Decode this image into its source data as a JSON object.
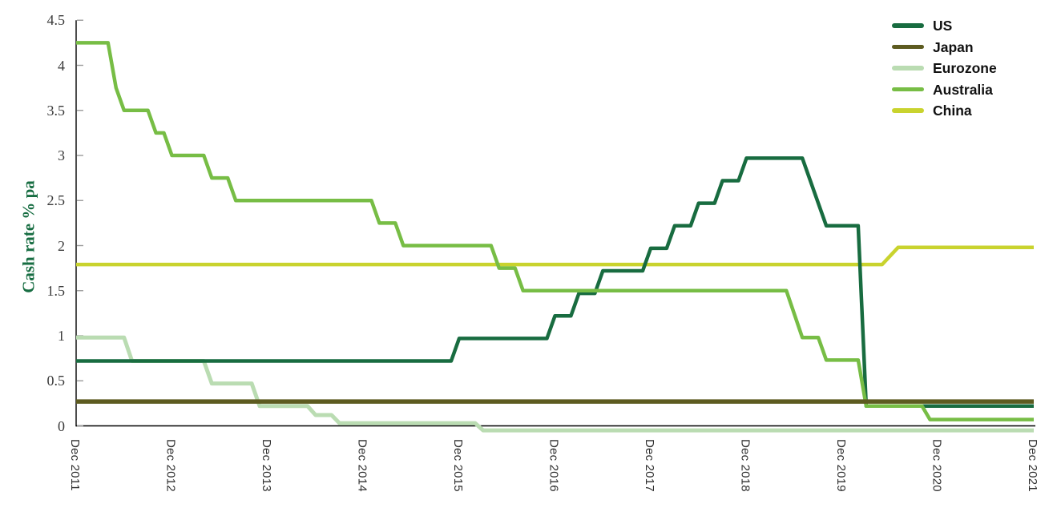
{
  "chart_data": {
    "type": "line",
    "title": "",
    "ylabel": "Cash rate % pa",
    "xlabel": "",
    "grid": false,
    "legend_position": "top-right",
    "x_unit": "months since Dec 2011",
    "xlim_months": [
      0,
      120
    ],
    "ylim": [
      0,
      4.5
    ],
    "y_ticks": [
      0,
      0.5,
      1,
      1.5,
      2,
      2.5,
      3,
      3.5,
      4,
      4.5
    ],
    "x_tick_months": [
      0,
      12,
      24,
      36,
      48,
      60,
      72,
      84,
      96,
      108,
      120
    ],
    "x_tick_labels": [
      "Dec 2011",
      "Dec 2012",
      "Dec 2013",
      "Dec 2014",
      "Dec 2015",
      "Dec 2016",
      "Dec 2017",
      "Dec 2018",
      "Dec 2019",
      "Dec 2020",
      "Dec 2021"
    ],
    "axis_color": "#000000",
    "tick_color": "#9B9B9B",
    "ylabel_color": "#176D42",
    "tick_label_color": "#3B3B3B",
    "draw_order": [
      "Eurozone",
      "China",
      "US",
      "Australia",
      "Japan"
    ],
    "series": [
      {
        "name": "US",
        "color": "#186C40",
        "width": 4.5,
        "points": [
          [
            0,
            0.72
          ],
          [
            47,
            0.72
          ],
          [
            48,
            0.97
          ],
          [
            59,
            0.97
          ],
          [
            60,
            1.22
          ],
          [
            62,
            1.22
          ],
          [
            63,
            1.47
          ],
          [
            65,
            1.47
          ],
          [
            66,
            1.72
          ],
          [
            71,
            1.72
          ],
          [
            72,
            1.97
          ],
          [
            74,
            1.97
          ],
          [
            75,
            2.22
          ],
          [
            77,
            2.22
          ],
          [
            78,
            2.47
          ],
          [
            80,
            2.47
          ],
          [
            81,
            2.72
          ],
          [
            83,
            2.72
          ],
          [
            84,
            2.97
          ],
          [
            91,
            2.97
          ],
          [
            94,
            2.22
          ],
          [
            98,
            2.22
          ],
          [
            99,
            0.22
          ],
          [
            120,
            0.22
          ]
        ]
      },
      {
        "name": "Japan",
        "color": "#5D5B20",
        "width": 5.5,
        "points": [
          [
            0,
            0.27
          ],
          [
            120,
            0.27
          ]
        ]
      },
      {
        "name": "Eurozone",
        "color": "#BADCB2",
        "width": 5,
        "points": [
          [
            0,
            0.98
          ],
          [
            6,
            0.98
          ],
          [
            7,
            0.72
          ],
          [
            16,
            0.72
          ],
          [
            17,
            0.47
          ],
          [
            22,
            0.47
          ],
          [
            23,
            0.22
          ],
          [
            29,
            0.22
          ],
          [
            30,
            0.12
          ],
          [
            32,
            0.12
          ],
          [
            33,
            0.03
          ],
          [
            50,
            0.03
          ],
          [
            51,
            -0.05
          ],
          [
            120,
            -0.05
          ]
        ]
      },
      {
        "name": "Australia",
        "color": "#77BD45",
        "width": 4.5,
        "points": [
          [
            0,
            4.25
          ],
          [
            4,
            4.25
          ],
          [
            5,
            3.75
          ],
          [
            6,
            3.5
          ],
          [
            9,
            3.5
          ],
          [
            10,
            3.25
          ],
          [
            11,
            3.25
          ],
          [
            12,
            3.0
          ],
          [
            16,
            3.0
          ],
          [
            17,
            2.75
          ],
          [
            19,
            2.75
          ],
          [
            20,
            2.5
          ],
          [
            37,
            2.5
          ],
          [
            38,
            2.25
          ],
          [
            40,
            2.25
          ],
          [
            41,
            2.0
          ],
          [
            52,
            2.0
          ],
          [
            53,
            1.75
          ],
          [
            55,
            1.75
          ],
          [
            56,
            1.5
          ],
          [
            89,
            1.5
          ],
          [
            91,
            0.98
          ],
          [
            93,
            0.98
          ],
          [
            94,
            0.73
          ],
          [
            98,
            0.73
          ],
          [
            99,
            0.22
          ],
          [
            106,
            0.22
          ],
          [
            107,
            0.07
          ],
          [
            120,
            0.07
          ]
        ]
      },
      {
        "name": "China",
        "color": "#C9D32E",
        "width": 4.5,
        "points": [
          [
            0,
            1.79
          ],
          [
            101,
            1.79
          ],
          [
            103,
            1.98
          ],
          [
            120,
            1.98
          ]
        ]
      }
    ]
  }
}
